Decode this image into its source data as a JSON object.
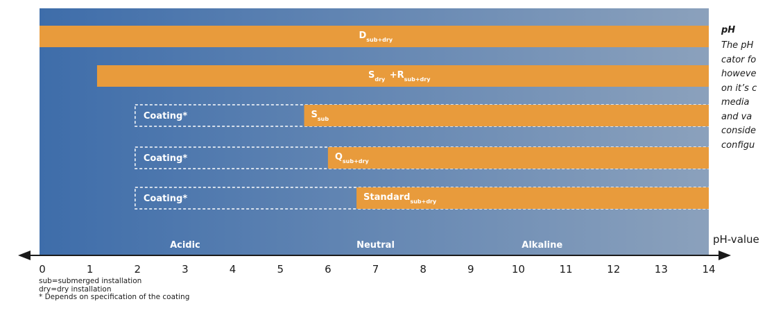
{
  "chart_data": {
    "type": "range-bar",
    "x_axis": {
      "title": "pH-value",
      "min": 0,
      "max": 14,
      "ticks": [
        "0",
        "1",
        "2",
        "3",
        "4",
        "5",
        "6",
        "7",
        "8",
        "9",
        "10",
        "11",
        "12",
        "13",
        "14"
      ]
    },
    "regions": [
      {
        "label": "Acidic",
        "center": 3
      },
      {
        "label": "Neutral",
        "center": 7
      },
      {
        "label": "Alkaline",
        "center": 10.5
      }
    ],
    "rows": [
      {
        "main": "D",
        "sub": "sub+dry",
        "start": 0,
        "end": 14,
        "coating_label": "",
        "coating_start": null
      },
      {
        "main": "S",
        "sub": "dry",
        "main2": "+R",
        "sub2": "sub+dry",
        "start": 1.15,
        "end": 14,
        "coating_label": "",
        "coating_start": null
      },
      {
        "main": "S",
        "sub": "sub",
        "start": 5.5,
        "end": 14,
        "coating_label": "Coating*",
        "coating_start": 1.95
      },
      {
        "main": "Q",
        "sub": "sub+dry",
        "start": 6,
        "end": 14,
        "coating_label": "Coating*",
        "coating_start": 1.95
      },
      {
        "main": "Standard",
        "sub": "sub+dry",
        "start": 6.6,
        "end": 14,
        "coating_label": "Coating*",
        "coating_start": 1.95
      }
    ],
    "colors": {
      "bar": "#E89B3C",
      "bg_left": "#3E6DAA",
      "bg_right": "#8BA1BC",
      "dashed_border": "#FFFFFF"
    }
  },
  "side_note": {
    "heading": "pH",
    "lines": [
      "The pH",
      "cator fo",
      "howeve",
      "on it’s c",
      "media",
      "and va",
      "conside",
      "configu"
    ]
  },
  "footnotes": [
    "sub=submerged installation",
    "dry=dry installation",
    "* Depends on specification of the coating"
  ]
}
